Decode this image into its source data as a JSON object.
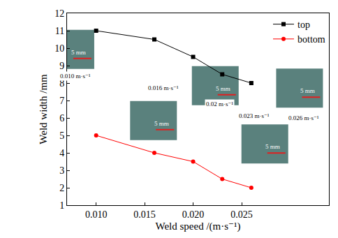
{
  "chart_data": {
    "type": "line",
    "x_label": "Weld speed /(m·s⁻¹)",
    "y_label": "Weld width /mm",
    "x": [
      0.01,
      0.016,
      0.02,
      0.023,
      0.026
    ],
    "series": [
      {
        "name": "top",
        "color": "#000000",
        "marker": "square",
        "values": [
          11,
          10.5,
          9.5,
          8.5,
          8
        ]
      },
      {
        "name": "bottom",
        "color": "#ff0000",
        "marker": "circle",
        "values": [
          5,
          4,
          3.5,
          2.5,
          2
        ]
      }
    ],
    "xlim": [
      0.007,
      0.034
    ],
    "xticks": [
      {
        "value": 0.01,
        "label": "0.010"
      },
      0.015,
      {
        "value": 0.02,
        "label": "0.020"
      },
      0.025
    ],
    "ylim": [
      1,
      12
    ],
    "yticks": [
      1,
      2,
      3,
      4,
      5,
      6,
      7,
      8,
      9,
      10,
      11,
      12
    ],
    "grid": false,
    "legend": "upper right",
    "annotations": [
      {
        "text": "0.010 m·s⁻¹",
        "x": 0.00785,
        "y": 8.42,
        "scale_bar": {
          "text": "5 mm",
          "x": 0.00822,
          "y": 9.77
        }
      },
      {
        "text": "0.016 m·s⁻¹",
        "x": 0.01696,
        "y": 7.73,
        "scale_bar": {
          "text": "5 mm",
          "x": 0.01674,
          "y": 5.69
        }
      },
      {
        "text": "0.02 m·s⁻¹",
        "x": 0.02274,
        "y": 6.81,
        "scale_bar": {
          "text": "5 mm",
          "x": 0.02311,
          "y": 7.69
        }
      },
      {
        "text": "0.023 m·s⁻¹",
        "x": 0.0263,
        "y": 6.12,
        "scale_bar": {
          "text": "5 mm",
          "x": 0.02822,
          "y": 4.35
        }
      },
      {
        "text": "0.026 m·s⁻¹",
        "x": 0.0314,
        "y": 6.0,
        "scale_bar": {
          "text": "5 mm",
          "x": 0.0318,
          "y": 7.55
        }
      }
    ]
  }
}
